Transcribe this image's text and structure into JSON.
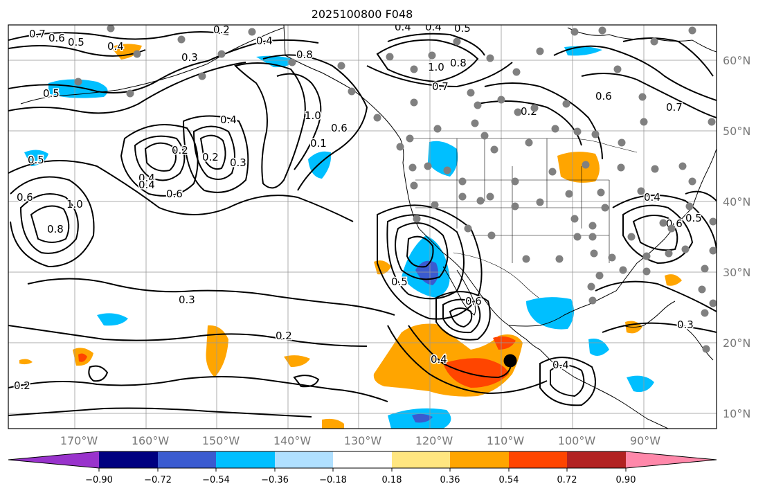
{
  "title": "2025100800 F048",
  "map": {
    "lon_labels": [
      "170°W",
      "160°W",
      "150°W",
      "140°W",
      "130°W",
      "120°W",
      "110°W",
      "100°W",
      "90°W"
    ],
    "lat_labels": [
      "60°N",
      "50°N",
      "40°N",
      "30°N",
      "20°N",
      "10°N"
    ],
    "contour_labels": [
      "0.7",
      "0.6",
      "0.5",
      "0.4",
      "0.2",
      "0.4",
      "0.8",
      "0.4",
      "0.4",
      "0.5",
      "1.0",
      "0.8",
      "0.7",
      "0.5",
      "0.3",
      "0.4",
      "0.1",
      "1.0",
      "0.6",
      "0.2",
      "0.6",
      "0.7",
      "0.4",
      "0.2",
      "0.3",
      "0.2",
      "0.5",
      "0.6",
      "0.8",
      "1.0",
      "0.4",
      "0.6",
      "0.3",
      "0.5",
      "0.6",
      "0.2",
      "0.4",
      "0.4",
      "0.2",
      "0.4",
      "0.6",
      "0.5",
      "0.3"
    ],
    "colors": {
      "purple": "#9933cc",
      "navy": "#000080",
      "blue": "#3a5bd0",
      "cyan": "#00bfff",
      "lightblue": "#b0e0ff",
      "white": "#ffffff",
      "yellow": "#ffe680",
      "orange": "#ffa500",
      "redorange": "#ff4500",
      "darkred": "#b22222",
      "pink": "#ff88aa"
    }
  },
  "colorbar": {
    "ticks": [
      "−0.90",
      "−0.72",
      "−0.54",
      "−0.36",
      "−0.18",
      "0.18",
      "0.36",
      "0.54",
      "0.72",
      "0.90"
    ]
  }
}
